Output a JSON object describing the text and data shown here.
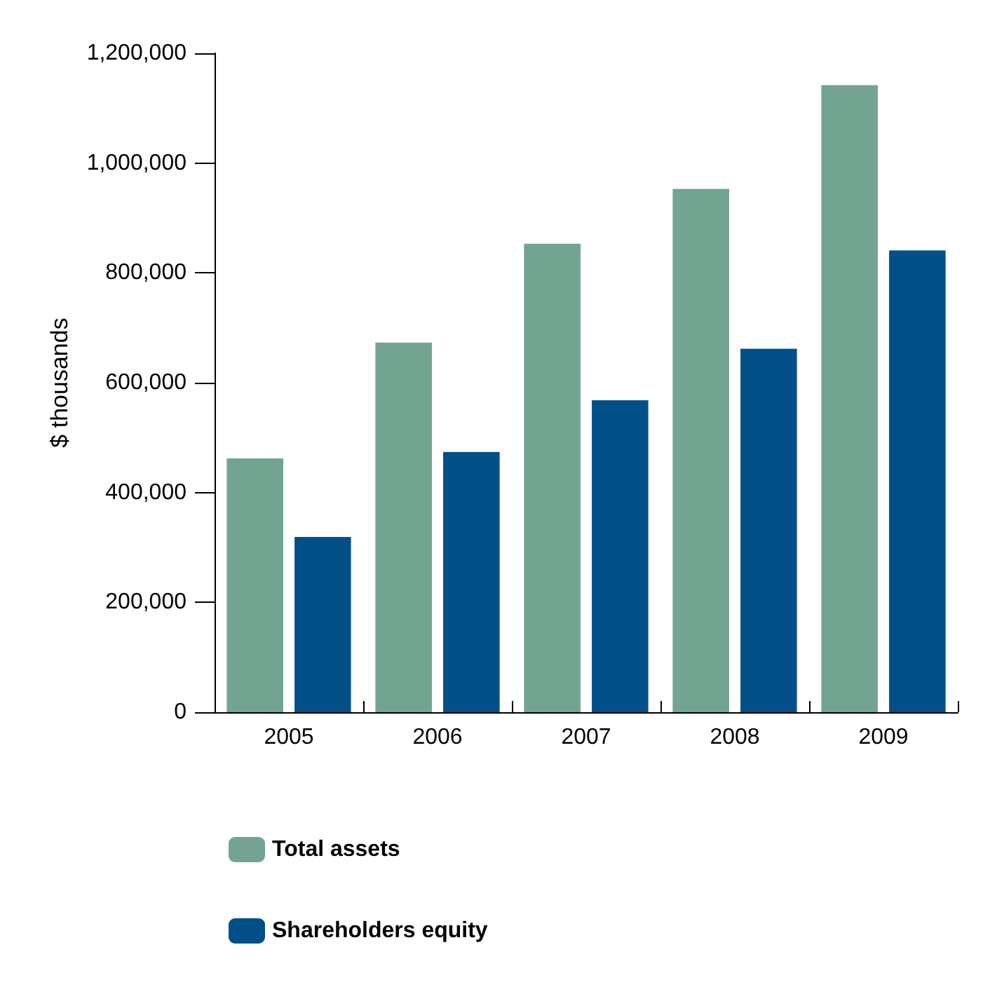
{
  "chart_data": {
    "type": "bar",
    "ylabel": "$ thousands",
    "categories": [
      "2005",
      "2006",
      "2007",
      "2008",
      "2009"
    ],
    "series": [
      {
        "name": "Total assets",
        "color": "#72a491",
        "values": [
          462000,
          673000,
          853000,
          953000,
          1142000
        ]
      },
      {
        "name": "Shareholders equity",
        "color": "#035088",
        "values": [
          319000,
          474000,
          568000,
          662000,
          841000
        ]
      }
    ],
    "ylim": [
      0,
      1200000
    ],
    "yticks": [
      0,
      {
        "value": 200000,
        "label": "200,000"
      },
      {
        "value": 400000,
        "label": "400,000"
      },
      {
        "value": 600000,
        "label": "600,000"
      },
      {
        "value": 800000,
        "label": "800,000"
      },
      {
        "value": 1000000,
        "label": "1,000,000"
      },
      {
        "value": 1200000,
        "label": "1,200,000"
      }
    ],
    "grid": false,
    "legend": "bottom left"
  }
}
